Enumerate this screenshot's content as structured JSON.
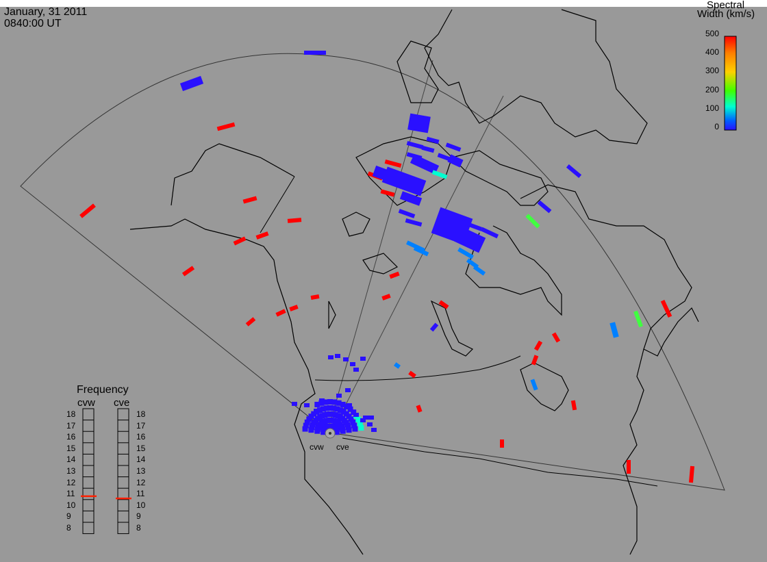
{
  "header": {
    "date": "January, 31 2011",
    "time": "0840:00 UT"
  },
  "colorbar": {
    "title_line1": "Spectral",
    "title_line2": "Width (km/s)",
    "ticks": [
      "500",
      "400",
      "300",
      "200",
      "100",
      "0"
    ],
    "colors": [
      "#ff0000",
      "#ff8000",
      "#ffd000",
      "#40ff00",
      "#00ffd0",
      "#0060ff",
      "#2a10ff"
    ]
  },
  "frequency_panel": {
    "title": "Frequency",
    "radars": [
      "cvw",
      "cve"
    ],
    "ticks": [
      "18",
      "17",
      "16",
      "15",
      "14",
      "13",
      "12",
      "11",
      "10",
      "9",
      "8"
    ],
    "cvw_frequency_mhz": 10.8,
    "cve_frequency_mhz": 10.6,
    "marker_color": "#ff2000"
  },
  "map": {
    "background": "#999999",
    "echo_colors": {
      "low": "#2a10ff",
      "mid": "#0080ff",
      "cyan": "#00ffd0",
      "green": "#40ff40",
      "high": "#ff0000"
    },
    "radar_labels": {
      "west": "cvw",
      "east": "cve"
    }
  }
}
